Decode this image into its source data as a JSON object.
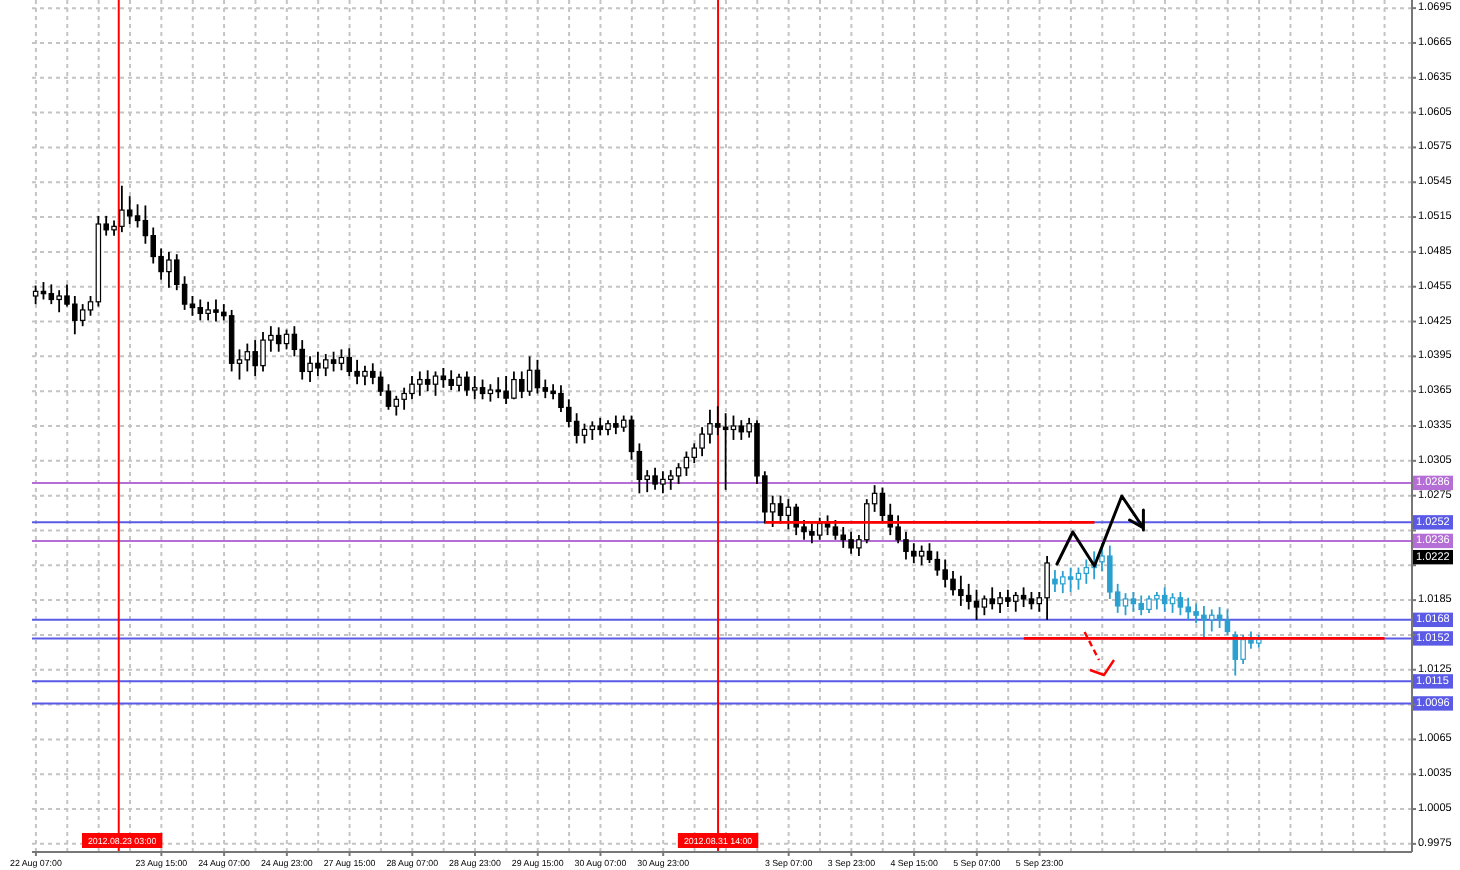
{
  "chart_data": {
    "type": "candlestick",
    "categories": [
      "22 Aug 07:00",
      null,
      null,
      null,
      null,
      null,
      null,
      null,
      null,
      null,
      null,
      "2012.08.23 03:00",
      null,
      null,
      null,
      null,
      "23 Aug 15:00",
      null,
      null,
      null,
      null,
      null,
      null,
      null,
      "24 Aug 07:00",
      null,
      null,
      null,
      null,
      null,
      null,
      null,
      "24 Aug 23:00",
      null,
      null,
      null,
      null,
      null,
      null,
      null,
      "27 Aug 15:00",
      null,
      null,
      null,
      null,
      null,
      null,
      null,
      "28 Aug 07:00",
      null,
      null,
      null,
      null,
      null,
      null,
      null,
      "28 Aug 23:00",
      null,
      null,
      null,
      null,
      null,
      null,
      null,
      "29 Aug 15:00",
      null,
      null,
      null,
      null,
      null,
      null,
      null,
      "30 Aug 07:00",
      null,
      null,
      null,
      null,
      null,
      null,
      null,
      "30 Aug 23:00",
      null,
      null,
      null,
      null,
      null,
      null,
      "2012.08.31 14:00",
      null,
      null,
      null,
      null,
      null,
      null,
      null,
      null,
      "3 Sep 07:00",
      null,
      null,
      null,
      null,
      null,
      null,
      null,
      "3 Sep 23:00",
      null,
      null,
      null,
      null,
      null,
      null,
      null,
      "4 Sep 15:00",
      null,
      null,
      null,
      null,
      null,
      null,
      null,
      "5 Sep 07:00",
      null,
      null,
      null,
      null,
      null,
      null,
      null,
      "5 Sep 23:00",
      null,
      null,
      null,
      null,
      null,
      null,
      null,
      null,
      null,
      null,
      null,
      null,
      null,
      null,
      null,
      null,
      null,
      null,
      null,
      null,
      null,
      null,
      null,
      null,
      null,
      null,
      null,
      null,
      null,
      null,
      null,
      null,
      null,
      null,
      null,
      null,
      null,
      null,
      null,
      null,
      null,
      null,
      null,
      null,
      null,
      null,
      null
    ],
    "series": [
      {
        "color": "#000000",
        "ohlc": [
          [
            1.0447,
            1.0456,
            1.044,
            1.0451
          ],
          [
            1.0451,
            1.0459,
            1.0444,
            1.0449
          ],
          [
            1.0449,
            1.0457,
            1.044,
            1.0444
          ],
          [
            1.0444,
            1.0452,
            1.0433,
            1.0447
          ],
          [
            1.0447,
            1.0457,
            1.0438,
            1.044
          ],
          [
            1.044,
            1.0447,
            1.0414,
            1.0426
          ],
          [
            1.0426,
            1.044,
            1.0421,
            1.0435
          ],
          [
            1.0435,
            1.0447,
            1.043,
            1.0442
          ],
          [
            1.0442,
            1.0516,
            1.0438,
            1.0509
          ],
          [
            1.0509,
            1.0516,
            1.0499,
            1.0504
          ],
          [
            1.0504,
            1.0512,
            1.0499,
            1.0507
          ],
          [
            1.0507,
            1.0542,
            1.0502,
            1.0521
          ],
          [
            1.0521,
            1.0533,
            1.0509,
            1.0516
          ],
          [
            1.0516,
            1.0526,
            1.0506,
            1.0512
          ],
          [
            1.0512,
            1.0525,
            1.0492,
            1.0499
          ],
          [
            1.0499,
            1.0506,
            1.0475,
            1.0481
          ],
          [
            1.0481,
            1.0488,
            1.0461,
            1.0468
          ],
          [
            1.0468,
            1.0485,
            1.0454,
            1.0478
          ],
          [
            1.0478,
            1.0483,
            1.0452,
            1.0457
          ],
          [
            1.0457,
            1.0464,
            1.0435,
            1.044
          ],
          [
            1.044,
            1.0447,
            1.043,
            1.0437
          ],
          [
            1.0437,
            1.0444,
            1.0426,
            1.0432
          ],
          [
            1.0432,
            1.0442,
            1.0426,
            1.0435
          ],
          [
            1.0435,
            1.0444,
            1.0425,
            1.0433
          ],
          [
            1.0433,
            1.044,
            1.0426,
            1.043
          ],
          [
            1.043,
            1.0435,
            1.0382,
            1.0389
          ],
          [
            1.0389,
            1.0401,
            1.0375,
            1.0392
          ],
          [
            1.0392,
            1.0406,
            1.0382,
            1.0399
          ],
          [
            1.0399,
            1.0409,
            1.0378,
            1.0387
          ],
          [
            1.0387,
            1.0416,
            1.0382,
            1.0409
          ],
          [
            1.0409,
            1.0421,
            1.0399,
            1.0413
          ],
          [
            1.0413,
            1.042,
            1.0399,
            1.0406
          ],
          [
            1.0406,
            1.0418,
            1.0401,
            1.0414
          ],
          [
            1.0414,
            1.0421,
            1.0395,
            1.0401
          ],
          [
            1.0401,
            1.0409,
            1.0375,
            1.0382
          ],
          [
            1.0382,
            1.0395,
            1.0373,
            1.0389
          ],
          [
            1.0389,
            1.0399,
            1.0378,
            1.0385
          ],
          [
            1.0385,
            1.0397,
            1.0378,
            1.0392
          ],
          [
            1.0392,
            1.0399,
            1.0382,
            1.0389
          ],
          [
            1.0389,
            1.0401,
            1.0383,
            1.0394
          ],
          [
            1.0394,
            1.0402,
            1.0378,
            1.0382
          ],
          [
            1.0382,
            1.0392,
            1.0371,
            1.0378
          ],
          [
            1.0378,
            1.0387,
            1.037,
            1.0382
          ],
          [
            1.0382,
            1.0389,
            1.0371,
            1.0377
          ],
          [
            1.0377,
            1.0382,
            1.0361,
            1.0365
          ],
          [
            1.0365,
            1.0371,
            1.0349,
            1.0352
          ],
          [
            1.0352,
            1.0361,
            1.0344,
            1.0358
          ],
          [
            1.0358,
            1.0368,
            1.0349,
            1.0363
          ],
          [
            1.0363,
            1.0378,
            1.0358,
            1.0371
          ],
          [
            1.0371,
            1.0382,
            1.0361,
            1.0375
          ],
          [
            1.0375,
            1.0383,
            1.0365,
            1.0371
          ],
          [
            1.0371,
            1.0382,
            1.0361,
            1.0378
          ],
          [
            1.0378,
            1.0385,
            1.0368,
            1.0375
          ],
          [
            1.0375,
            1.0383,
            1.0366,
            1.037
          ],
          [
            1.037,
            1.038,
            1.0365,
            1.0377
          ],
          [
            1.0377,
            1.0382,
            1.0361,
            1.0366
          ],
          [
            1.0366,
            1.0378,
            1.0358,
            1.0368
          ],
          [
            1.0368,
            1.0375,
            1.0358,
            1.0363
          ],
          [
            1.0363,
            1.0371,
            1.0356,
            1.0366
          ],
          [
            1.0366,
            1.0377,
            1.0359,
            1.0365
          ],
          [
            1.0365,
            1.0378,
            1.0354,
            1.0359
          ],
          [
            1.0359,
            1.0382,
            1.0358,
            1.0375
          ],
          [
            1.0375,
            1.0382,
            1.0359,
            1.0365
          ],
          [
            1.0365,
            1.0395,
            1.0361,
            1.0383
          ],
          [
            1.0383,
            1.0392,
            1.0363,
            1.0368
          ],
          [
            1.0368,
            1.0375,
            1.0359,
            1.0365
          ],
          [
            1.0365,
            1.0371,
            1.0358,
            1.0363
          ],
          [
            1.0363,
            1.037,
            1.0347,
            1.0351
          ],
          [
            1.0351,
            1.0358,
            1.0334,
            1.0339
          ],
          [
            1.0339,
            1.0346,
            1.032,
            1.0327
          ],
          [
            1.0327,
            1.0337,
            1.032,
            1.0332
          ],
          [
            1.0332,
            1.0339,
            1.0323,
            1.0335
          ],
          [
            1.0335,
            1.0342,
            1.0327,
            1.0332
          ],
          [
            1.0332,
            1.034,
            1.0327,
            1.0337
          ],
          [
            1.0337,
            1.0344,
            1.0328,
            1.0334
          ],
          [
            1.0334,
            1.0344,
            1.033,
            1.034
          ],
          [
            1.034,
            1.0344,
            1.0306,
            1.0313
          ],
          [
            1.0313,
            1.032,
            1.0277,
            1.0289
          ],
          [
            1.0289,
            1.0297,
            1.0278,
            1.0292
          ],
          [
            1.0292,
            1.0299,
            1.028,
            1.0285
          ],
          [
            1.0285,
            1.0296,
            1.0277,
            1.0289
          ],
          [
            1.0289,
            1.0297,
            1.028,
            1.0292
          ],
          [
            1.0292,
            1.0303,
            1.0285,
            1.0299
          ],
          [
            1.0299,
            1.0313,
            1.0292,
            1.0308
          ],
          [
            1.0308,
            1.032,
            1.0303,
            1.0316
          ],
          [
            1.0316,
            1.0334,
            1.0309,
            1.0328
          ],
          [
            1.0328,
            1.0349,
            1.032,
            1.0337
          ],
          [
            1.0337,
            1.0352,
            1.0327,
            1.0334
          ],
          [
            1.0334,
            1.0346,
            1.028,
            1.0332
          ],
          [
            1.0332,
            1.0344,
            1.0323,
            1.0335
          ],
          [
            1.0335,
            1.034,
            1.0323,
            1.033
          ],
          [
            1.033,
            1.0342,
            1.0325,
            1.0337
          ],
          [
            1.0337,
            1.034,
            1.0285,
            1.0292
          ],
          [
            1.0292,
            1.0296,
            1.0251,
            1.0261
          ],
          [
            1.0261,
            1.0275,
            1.0248,
            1.0268
          ],
          [
            1.0268,
            1.0275,
            1.0251,
            1.0258
          ],
          [
            1.0258,
            1.0272,
            1.0246,
            1.0265
          ],
          [
            1.0265,
            1.0268,
            1.0241,
            1.0248
          ],
          [
            1.0248,
            1.0254,
            1.0237,
            1.0244
          ],
          [
            1.0244,
            1.0251,
            1.0234,
            1.0241
          ],
          [
            1.0241,
            1.0256,
            1.0237,
            1.0251
          ],
          [
            1.0251,
            1.0258,
            1.0241,
            1.0248
          ],
          [
            1.0248,
            1.0254,
            1.0237,
            1.0241
          ],
          [
            1.0241,
            1.0248,
            1.023,
            1.0237
          ],
          [
            1.0237,
            1.0244,
            1.0225,
            1.023
          ],
          [
            1.023,
            1.0241,
            1.0223,
            1.0237
          ],
          [
            1.0237,
            1.0272,
            1.0234,
            1.0268
          ],
          [
            1.0268,
            1.0284,
            1.0261,
            1.0277
          ],
          [
            1.0277,
            1.0282,
            1.0251,
            1.0258
          ],
          [
            1.0258,
            1.0268,
            1.0241,
            1.0248
          ],
          [
            1.0248,
            1.0258,
            1.0234,
            1.0237
          ],
          [
            1.0237,
            1.0244,
            1.022,
            1.0227
          ],
          [
            1.0227,
            1.0234,
            1.0217,
            1.0223
          ],
          [
            1.0223,
            1.0232,
            1.0215,
            1.0227
          ],
          [
            1.0227,
            1.0234,
            1.0217,
            1.022
          ],
          [
            1.022,
            1.0227,
            1.0206,
            1.0211
          ],
          [
            1.0211,
            1.022,
            1.0196,
            1.0203
          ],
          [
            1.0203,
            1.021,
            1.0189,
            1.0194
          ],
          [
            1.0194,
            1.0206,
            1.018,
            1.0189
          ],
          [
            1.0189,
            1.0199,
            1.0177,
            1.0184
          ],
          [
            1.0184,
            1.0194,
            1.0168,
            1.0179
          ],
          [
            1.0179,
            1.0189,
            1.0172,
            1.0186
          ],
          [
            1.0186,
            1.0196,
            1.0177,
            1.0182
          ],
          [
            1.0182,
            1.0192,
            1.0174,
            1.0187
          ],
          [
            1.0187,
            1.0194,
            1.0179,
            1.0184
          ],
          [
            1.0184,
            1.0192,
            1.0175,
            1.0189
          ],
          [
            1.0189,
            1.0196,
            1.0179,
            1.0186
          ],
          [
            1.0186,
            1.0192,
            1.0177,
            1.0182
          ],
          [
            1.0182,
            1.0192,
            1.0175,
            1.0187
          ],
          [
            1.0187,
            1.0223,
            1.0168,
            1.0217
          ],
          null,
          null,
          null,
          null,
          null,
          null,
          null,
          null,
          null,
          null,
          null,
          null,
          null,
          null,
          null,
          null,
          null,
          null,
          null,
          null,
          null,
          null,
          null,
          null,
          null,
          null,
          null,
          null,
          null,
          null,
          null,
          null,
          null,
          null,
          null,
          null,
          null,
          null,
          null,
          null,
          null,
          null,
          null,
          null,
          null,
          null
        ]
      },
      {
        "color": "#2aa0d0",
        "ohlc": [
          null,
          null,
          null,
          null,
          null,
          null,
          null,
          null,
          null,
          null,
          null,
          null,
          null,
          null,
          null,
          null,
          null,
          null,
          null,
          null,
          null,
          null,
          null,
          null,
          null,
          null,
          null,
          null,
          null,
          null,
          null,
          null,
          null,
          null,
          null,
          null,
          null,
          null,
          null,
          null,
          null,
          null,
          null,
          null,
          null,
          null,
          null,
          null,
          null,
          null,
          null,
          null,
          null,
          null,
          null,
          null,
          null,
          null,
          null,
          null,
          null,
          null,
          null,
          null,
          null,
          null,
          null,
          null,
          null,
          null,
          null,
          null,
          null,
          null,
          null,
          null,
          null,
          null,
          null,
          null,
          null,
          null,
          null,
          null,
          null,
          null,
          null,
          null,
          null,
          null,
          null,
          null,
          null,
          null,
          null,
          null,
          null,
          null,
          null,
          null,
          null,
          null,
          null,
          null,
          null,
          null,
          null,
          null,
          null,
          null,
          null,
          null,
          null,
          null,
          null,
          null,
          null,
          null,
          null,
          null,
          null,
          null,
          null,
          null,
          null,
          null,
          null,
          null,
          null,
          null,
          [
            1.0203,
            1.0211,
            1.0192,
            1.0199
          ],
          [
            1.0199,
            1.021,
            1.0191,
            1.0205
          ],
          [
            1.0205,
            1.0213,
            1.0192,
            1.0203
          ],
          [
            1.0203,
            1.0213,
            1.0194,
            1.0208
          ],
          [
            1.0208,
            1.022,
            1.0199,
            1.0213
          ],
          [
            1.0213,
            1.0227,
            1.0203,
            1.0218
          ],
          [
            1.0218,
            1.0234,
            1.021,
            1.0223
          ],
          [
            1.0223,
            1.0232,
            1.0186,
            1.0192
          ],
          [
            1.0192,
            1.0199,
            1.0174,
            1.018
          ],
          [
            1.018,
            1.0191,
            1.0172,
            1.0186
          ],
          [
            1.0186,
            1.0192,
            1.0175,
            1.0182
          ],
          [
            1.0182,
            1.0189,
            1.0172,
            1.0177
          ],
          [
            1.0177,
            1.0189,
            1.0174,
            1.0186
          ],
          [
            1.0186,
            1.0192,
            1.0177,
            1.0189
          ],
          [
            1.0189,
            1.0196,
            1.0175,
            1.0182
          ],
          [
            1.0182,
            1.0191,
            1.0174,
            1.0187
          ],
          [
            1.0187,
            1.0192,
            1.0172,
            1.0179
          ],
          [
            1.0179,
            1.0187,
            1.0168,
            1.0175
          ],
          [
            1.0175,
            1.0182,
            1.0165,
            1.0172
          ],
          [
            1.0172,
            1.018,
            1.0151,
            1.0168
          ],
          [
            1.0168,
            1.0177,
            1.0158,
            1.0172
          ],
          [
            1.0172,
            1.0179,
            1.0161,
            1.0168
          ],
          [
            1.0168,
            1.0177,
            1.0155,
            1.0158
          ],
          [
            1.0155,
            1.0158,
            1.012,
            1.0134
          ],
          [
            1.0134,
            1.0155,
            1.013,
            1.0151
          ],
          [
            1.0151,
            1.0158,
            1.0143,
            1.0148
          ],
          [
            1.0148,
            1.0155,
            1.0144,
            1.0151
          ],
          null,
          null,
          null,
          null,
          null,
          null,
          null,
          null,
          null,
          null,
          null,
          null,
          null,
          null,
          null,
          null,
          null,
          null,
          null
        ]
      },
      {
        "type": "line",
        "color": "#ff0000",
        "values": [
          null,
          null,
          null,
          null,
          null,
          null,
          null,
          null,
          null,
          null,
          null,
          null,
          null,
          null,
          null,
          null,
          null,
          null,
          null,
          null,
          null,
          null,
          null,
          null,
          null,
          null,
          null,
          null,
          null,
          null,
          null,
          null,
          null,
          null,
          null,
          null,
          null,
          null,
          null,
          null,
          null,
          null,
          null,
          null,
          null,
          null,
          null,
          null,
          null,
          null,
          null,
          null,
          null,
          null,
          null,
          null,
          null,
          null,
          null,
          null,
          null,
          null,
          null,
          null,
          null,
          null,
          null,
          null,
          null,
          null,
          null,
          null,
          null,
          null,
          null,
          null,
          null,
          null,
          null,
          null,
          null,
          null,
          null,
          null,
          null,
          null,
          null,
          null,
          null,
          null,
          null,
          null,
          null,
          1.0252,
          1.0252,
          1.0252,
          1.0252,
          1.0252,
          1.0252,
          1.0252,
          1.0252,
          1.0252,
          1.0252,
          1.0252,
          1.0252,
          1.0252,
          1.0252,
          1.0252,
          1.0252,
          1.0252,
          1.0252,
          1.0252,
          1.0252,
          1.0252,
          1.0252,
          1.0252,
          1.0252,
          1.0252,
          1.0252,
          1.0252,
          1.0252,
          1.0252,
          1.0252,
          1.0252,
          1.0252,
          1.0252,
          1.0252,
          1.0252,
          1.0252,
          1.0252,
          1.0252,
          1.0252,
          1.0252,
          1.0252,
          1.0252,
          1.0252,
          null,
          null,
          null,
          null,
          null,
          null,
          null,
          null,
          null,
          null,
          null,
          null,
          null,
          null,
          null,
          null,
          null,
          null,
          null,
          null,
          null,
          null,
          null,
          null,
          null,
          null,
          null,
          null,
          null,
          null,
          null,
          null,
          null,
          null,
          null,
          null,
          null,
          null,
          null,
          null
        ]
      },
      {
        "type": "line",
        "color": "#ff0000",
        "values": [
          null,
          null,
          null,
          null,
          null,
          null,
          null,
          null,
          null,
          null,
          null,
          null,
          null,
          null,
          null,
          null,
          null,
          null,
          null,
          null,
          null,
          null,
          null,
          null,
          null,
          null,
          null,
          null,
          null,
          null,
          null,
          null,
          null,
          null,
          null,
          null,
          null,
          null,
          null,
          null,
          null,
          null,
          null,
          null,
          null,
          null,
          null,
          null,
          null,
          null,
          null,
          null,
          null,
          null,
          null,
          null,
          null,
          null,
          null,
          null,
          null,
          null,
          null,
          null,
          null,
          null,
          null,
          null,
          null,
          null,
          null,
          null,
          null,
          null,
          null,
          null,
          null,
          null,
          null,
          null,
          null,
          null,
          null,
          null,
          null,
          null,
          null,
          null,
          null,
          null,
          null,
          null,
          null,
          null,
          null,
          null,
          null,
          null,
          null,
          null,
          null,
          null,
          null,
          null,
          null,
          null,
          null,
          null,
          null,
          null,
          null,
          null,
          null,
          null,
          null,
          null,
          null,
          null,
          null,
          null,
          null,
          null,
          null,
          null,
          null,
          null,
          1.0152,
          1.0152,
          1.0152,
          1.0152,
          1.0152,
          1.0152,
          1.0152,
          1.0152,
          1.0152,
          1.0152,
          1.0152,
          1.0152,
          1.0152,
          1.0152,
          1.0152,
          1.0152,
          1.0152,
          1.0152,
          1.0152,
          1.0152,
          1.0152,
          1.0152,
          1.0152,
          1.0152,
          1.0152,
          1.0152,
          1.0152,
          1.0152,
          1.0152,
          1.0152,
          1.0152,
          1.0152,
          1.0152,
          1.0152,
          1.0152,
          1.0152,
          1.0152,
          1.0152,
          1.0152,
          1.0152,
          1.0152,
          1.0152,
          1.0152,
          1.0152,
          1.0152,
          1.0152,
          1.0152,
          null,
          null,
          null
        ]
      }
    ],
    "ylim": [
      0.9968,
      1.0702
    ],
    "yticks": [
      0.9975,
      1.0005,
      1.0035,
      1.0065,
      {
        "value": 1.0095,
        "label": null
      },
      1.0125,
      {
        "value": 1.0155,
        "label": null
      },
      1.0185,
      {
        "value": 1.0215,
        "label": null
      },
      {
        "value": 1.0245,
        "label": null
      },
      1.0275,
      1.0305,
      1.0335,
      1.0365,
      1.0395,
      1.0425,
      1.0455,
      1.0485,
      1.0515,
      1.0545,
      1.0575,
      1.0605,
      1.0635,
      1.0665,
      1.0695
    ],
    "grid": true,
    "ref_lines": [
      {
        "axis": "x",
        "value": "2012.08.23 03:00",
        "color": "#ff0000"
      },
      {
        "axis": "x",
        "value": "2012.08.31 14:00",
        "color": "#ff0000"
      },
      {
        "axis": "y",
        "value": 1.0286,
        "label": "1.0286",
        "color": "#b46ed6"
      },
      {
        "axis": "y",
        "value": 1.0252,
        "label": "1.0252",
        "color": "#5a5ae6"
      },
      {
        "axis": "y",
        "value": 1.0236,
        "label": "1.0236",
        "color": "#b46ed6"
      },
      {
        "axis": "y",
        "value": 1.0168,
        "label": "1.0168",
        "color": "#5a5ae6"
      },
      {
        "axis": "y",
        "value": 1.0152,
        "label": "1.0152",
        "color": "#5a5ae6"
      },
      {
        "axis": "y",
        "value": 1.0115,
        "label": "1.0115",
        "color": "#5a5ae6"
      },
      {
        "axis": "y",
        "value": 1.0096,
        "label": "1.0096",
        "color": "#5a5ae6"
      }
    ],
    "annotations": [
      {
        "text": "1.0222",
        "y": 1.0222
      }
    ]
  }
}
